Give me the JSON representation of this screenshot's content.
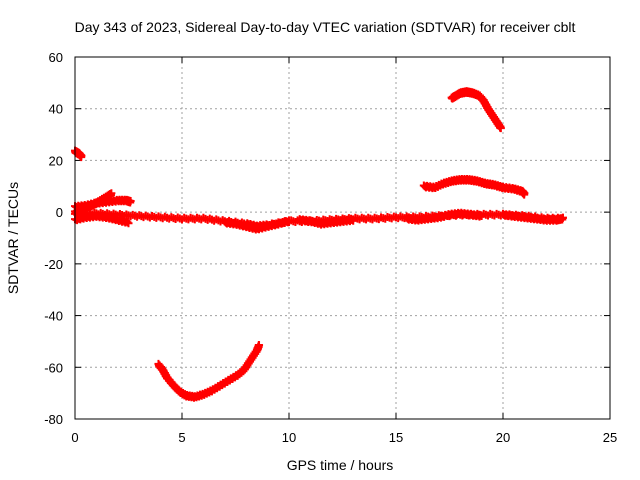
{
  "chart_data": {
    "type": "scatter",
    "title": "Day 343 of 2023, Sidereal Day-to-day VTEC variation (SDTVAR) for receiver cblt",
    "xlabel": "GPS time / hours",
    "ylabel": "SDTVAR / TECUs",
    "xlim": [
      0,
      25
    ],
    "ylim": [
      -80,
      60
    ],
    "x_ticks": [
      0,
      5,
      10,
      15,
      20,
      25
    ],
    "y_ticks": [
      -80,
      -60,
      -40,
      -20,
      0,
      20,
      40,
      60
    ],
    "x_tick_labels": [
      "0",
      "5",
      "10",
      "15",
      "20",
      "25"
    ],
    "y_tick_labels": [
      "-80",
      "-60",
      "-40",
      "-20",
      "0",
      "20",
      "40",
      "60"
    ],
    "grid": true,
    "marker": "+",
    "color": "#ff0000",
    "series": [
      {
        "name": "arc-1",
        "points": [
          [
            0.0,
            23.5
          ],
          [
            0.1,
            23
          ],
          [
            0.2,
            22.5
          ],
          [
            0.3,
            21.5
          ]
        ]
      },
      {
        "name": "arc-2",
        "points": [
          [
            0.0,
            0
          ],
          [
            0.3,
            1
          ],
          [
            0.6,
            2
          ],
          [
            0.9,
            3
          ],
          [
            1.2,
            4.5
          ],
          [
            1.5,
            6
          ],
          [
            1.7,
            7
          ]
        ]
      },
      {
        "name": "arc-3",
        "points": [
          [
            0.0,
            2
          ],
          [
            0.5,
            2.5
          ],
          [
            1.0,
            3.5
          ],
          [
            1.5,
            4
          ],
          [
            2.0,
            4.5
          ],
          [
            2.4,
            4.5
          ],
          [
            2.6,
            4
          ]
        ]
      },
      {
        "name": "arc-4",
        "points": [
          [
            0.0,
            -3
          ],
          [
            0.5,
            -2
          ],
          [
            1.0,
            -1.5
          ],
          [
            1.5,
            -2
          ],
          [
            2.0,
            -3
          ],
          [
            2.5,
            -4
          ]
        ]
      },
      {
        "name": "arc-5",
        "points": [
          [
            0.0,
            -1
          ],
          [
            1.0,
            -0.5
          ],
          [
            2.0,
            -1
          ],
          [
            3.0,
            -1.5
          ],
          [
            4.0,
            -2
          ],
          [
            5.0,
            -2.5
          ],
          [
            6.0,
            -2.5
          ],
          [
            7.0,
            -3.5
          ],
          [
            8.0,
            -4.5
          ],
          [
            8.5,
            -5.5
          ],
          [
            9.0,
            -5
          ],
          [
            10.0,
            -3.5
          ],
          [
            11.0,
            -3.5
          ],
          [
            12.0,
            -3
          ],
          [
            13.0,
            -2.5
          ],
          [
            14.0,
            -2.5
          ],
          [
            15.0,
            -2
          ],
          [
            16.0,
            -2
          ],
          [
            17.0,
            -1.5
          ],
          [
            18.0,
            -1
          ],
          [
            19.0,
            -1
          ],
          [
            20.0,
            -1
          ],
          [
            21.0,
            -1.5
          ],
          [
            22.0,
            -2.5
          ],
          [
            22.8,
            -2.5
          ]
        ]
      },
      {
        "name": "arc-6",
        "points": [
          [
            7.0,
            -4
          ],
          [
            7.5,
            -4.5
          ],
          [
            8.0,
            -5.5
          ],
          [
            8.5,
            -6.5
          ],
          [
            9.0,
            -5.5
          ],
          [
            9.5,
            -4.5
          ],
          [
            10.0,
            -3.5
          ]
        ]
      },
      {
        "name": "arc-7",
        "points": [
          [
            10.5,
            -3
          ],
          [
            11.0,
            -3.5
          ],
          [
            11.5,
            -4.5
          ],
          [
            12.0,
            -4
          ],
          [
            12.5,
            -3.5
          ],
          [
            13.0,
            -3
          ]
        ]
      },
      {
        "name": "arc-8",
        "points": [
          [
            15.5,
            -2.5
          ],
          [
            16.0,
            -3
          ],
          [
            16.5,
            -2.5
          ],
          [
            17.0,
            -2
          ],
          [
            17.5,
            -1
          ],
          [
            18.0,
            -0.5
          ],
          [
            18.5,
            -1
          ],
          [
            19.0,
            -1.5
          ]
        ]
      },
      {
        "name": "arc-9",
        "points": [
          [
            20.0,
            -1
          ],
          [
            20.5,
            -1.5
          ],
          [
            21.0,
            -2
          ],
          [
            21.5,
            -2.5
          ],
          [
            22.0,
            -3
          ],
          [
            22.5,
            -3
          ],
          [
            22.8,
            -2.5
          ]
        ]
      },
      {
        "name": "arc-10",
        "points": [
          [
            16.3,
            10
          ],
          [
            16.8,
            9.5
          ],
          [
            17.2,
            11
          ],
          [
            17.6,
            12
          ],
          [
            18.0,
            12.5
          ],
          [
            18.4,
            12.5
          ],
          [
            18.8,
            12
          ],
          [
            19.2,
            11
          ],
          [
            19.6,
            10.5
          ],
          [
            20.0,
            9.5
          ],
          [
            20.5,
            9
          ],
          [
            20.9,
            8
          ],
          [
            21.0,
            7
          ]
        ]
      },
      {
        "name": "arc-11",
        "points": [
          [
            17.6,
            44
          ],
          [
            17.8,
            45
          ],
          [
            18.0,
            46
          ],
          [
            18.3,
            46.5
          ],
          [
            18.6,
            46
          ],
          [
            18.9,
            45
          ],
          [
            19.1,
            43
          ],
          [
            19.3,
            40
          ],
          [
            19.5,
            37.5
          ],
          [
            19.7,
            35
          ],
          [
            19.9,
            32.5
          ]
        ]
      },
      {
        "name": "arc-12",
        "points": [
          [
            3.9,
            -59
          ],
          [
            4.1,
            -61
          ],
          [
            4.3,
            -64
          ],
          [
            4.6,
            -67
          ],
          [
            4.9,
            -69.5
          ],
          [
            5.2,
            -71
          ],
          [
            5.6,
            -71.5
          ],
          [
            6.0,
            -70.5
          ],
          [
            6.4,
            -69
          ],
          [
            6.8,
            -67
          ],
          [
            7.2,
            -65
          ],
          [
            7.6,
            -63
          ],
          [
            7.9,
            -61
          ],
          [
            8.1,
            -58.5
          ],
          [
            8.3,
            -56
          ],
          [
            8.5,
            -53.5
          ],
          [
            8.6,
            -51.5
          ]
        ]
      }
    ]
  }
}
